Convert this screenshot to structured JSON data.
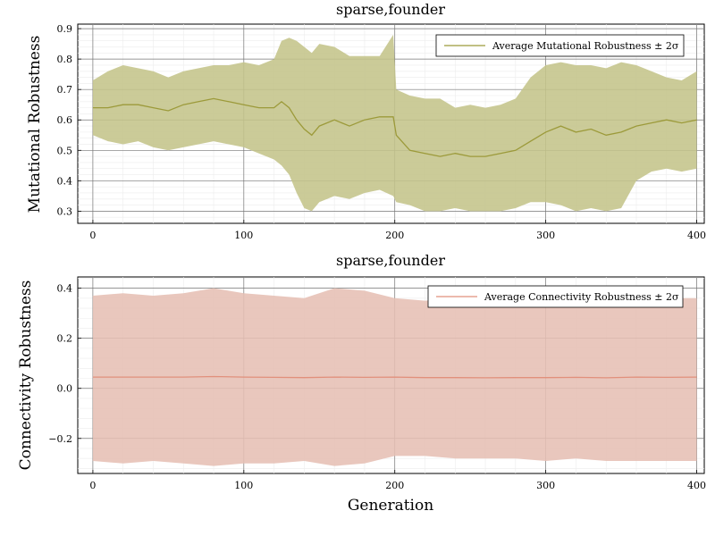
{
  "chart_data": [
    {
      "type": "area",
      "title": "sparse,founder",
      "xlabel": "",
      "ylabel": "Mutational Robustness",
      "xlim": [
        -10,
        405
      ],
      "ylim": [
        0.26,
        0.915
      ],
      "xticks": [
        0,
        100,
        200,
        300,
        400
      ],
      "yticks": [
        0.3,
        0.4,
        0.5,
        0.6,
        0.7,
        0.8,
        0.9
      ],
      "ytick_labels": [
        "0.3",
        "0.4",
        "0.5",
        "0.6",
        "0.7",
        "0.8",
        "0.9"
      ],
      "grid": true,
      "legend_position": "top-right",
      "colors": {
        "line": "#9c9a3a",
        "band": "#c4c48a"
      },
      "series": [
        {
          "name": "Average Mutational Robustness ± 2σ",
          "x": [
            0,
            10,
            20,
            30,
            40,
            50,
            60,
            70,
            80,
            90,
            100,
            110,
            120,
            125,
            130,
            135,
            140,
            145,
            150,
            160,
            170,
            180,
            190,
            199,
            201,
            210,
            220,
            230,
            240,
            250,
            260,
            270,
            280,
            290,
            300,
            310,
            320,
            330,
            340,
            350,
            360,
            370,
            380,
            390,
            400
          ],
          "mean": [
            0.64,
            0.64,
            0.65,
            0.65,
            0.64,
            0.63,
            0.65,
            0.66,
            0.67,
            0.66,
            0.65,
            0.64,
            0.64,
            0.66,
            0.64,
            0.6,
            0.57,
            0.55,
            0.58,
            0.6,
            0.58,
            0.6,
            0.61,
            0.61,
            0.55,
            0.5,
            0.49,
            0.48,
            0.49,
            0.48,
            0.48,
            0.49,
            0.5,
            0.53,
            0.56,
            0.58,
            0.56,
            0.57,
            0.55,
            0.56,
            0.58,
            0.59,
            0.6,
            0.59,
            0.6
          ],
          "upper": [
            0.73,
            0.76,
            0.78,
            0.77,
            0.76,
            0.74,
            0.76,
            0.77,
            0.78,
            0.78,
            0.79,
            0.78,
            0.8,
            0.86,
            0.87,
            0.86,
            0.84,
            0.82,
            0.85,
            0.84,
            0.81,
            0.81,
            0.81,
            0.88,
            0.7,
            0.68,
            0.67,
            0.67,
            0.64,
            0.65,
            0.64,
            0.65,
            0.67,
            0.74,
            0.78,
            0.79,
            0.78,
            0.78,
            0.77,
            0.79,
            0.78,
            0.76,
            0.74,
            0.73,
            0.76
          ],
          "lower": [
            0.55,
            0.53,
            0.52,
            0.53,
            0.51,
            0.5,
            0.51,
            0.52,
            0.53,
            0.52,
            0.51,
            0.49,
            0.47,
            0.45,
            0.42,
            0.36,
            0.31,
            0.3,
            0.33,
            0.35,
            0.34,
            0.36,
            0.37,
            0.35,
            0.33,
            0.32,
            0.3,
            0.3,
            0.31,
            0.3,
            0.3,
            0.3,
            0.31,
            0.33,
            0.33,
            0.32,
            0.3,
            0.31,
            0.3,
            0.31,
            0.4,
            0.43,
            0.44,
            0.43,
            0.44
          ]
        }
      ]
    },
    {
      "type": "area",
      "title": "sparse,founder",
      "xlabel": "Generation",
      "ylabel": "Connectivity Robustness",
      "xlim": [
        -10,
        405
      ],
      "ylim": [
        -0.34,
        0.445
      ],
      "xticks": [
        0,
        100,
        200,
        300,
        400
      ],
      "yticks": [
        -0.2,
        0.0,
        0.2,
        0.4
      ],
      "ytick_labels": [
        "−0.2",
        "0.0",
        "0.2",
        "0.4"
      ],
      "grid": true,
      "legend_position": "top-right",
      "colors": {
        "line": "#e1907c",
        "band": "#e6bfb4"
      },
      "series": [
        {
          "name": "Average Connectivity Robustness ± 2σ",
          "x": [
            0,
            20,
            40,
            60,
            80,
            100,
            120,
            140,
            160,
            180,
            200,
            220,
            240,
            260,
            280,
            300,
            320,
            340,
            360,
            380,
            400
          ],
          "mean": [
            0.045,
            0.045,
            0.045,
            0.045,
            0.047,
            0.045,
            0.044,
            0.043,
            0.045,
            0.044,
            0.045,
            0.043,
            0.043,
            0.042,
            0.043,
            0.043,
            0.044,
            0.042,
            0.045,
            0.044,
            0.045
          ],
          "upper": [
            0.37,
            0.38,
            0.37,
            0.38,
            0.4,
            0.38,
            0.37,
            0.36,
            0.4,
            0.39,
            0.36,
            0.35,
            0.36,
            0.34,
            0.34,
            0.35,
            0.35,
            0.36,
            0.35,
            0.36,
            0.36
          ],
          "lower": [
            -0.29,
            -0.3,
            -0.29,
            -0.3,
            -0.31,
            -0.3,
            -0.3,
            -0.29,
            -0.31,
            -0.3,
            -0.27,
            -0.27,
            -0.28,
            -0.28,
            -0.28,
            -0.29,
            -0.28,
            -0.29,
            -0.29,
            -0.29,
            -0.29
          ]
        }
      ]
    }
  ]
}
